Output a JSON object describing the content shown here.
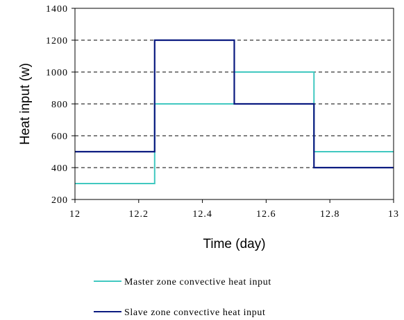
{
  "chart_data": {
    "type": "line",
    "xlabel": "Time (day)",
    "ylabel": "Heat input (w)",
    "xlim": [
      12,
      13
    ],
    "ylim": [
      200,
      1400
    ],
    "x_ticks": [
      {
        "value": 12,
        "label": "12"
      },
      {
        "value": 12.2,
        "label": "12.2"
      },
      {
        "value": 12.4,
        "label": "12.4"
      },
      {
        "value": 12.6,
        "label": "12.6"
      },
      {
        "value": 12.8,
        "label": "12.8"
      },
      {
        "value": 13,
        "label": "13"
      }
    ],
    "y_ticks": [
      {
        "value": 200,
        "label": "200"
      },
      {
        "value": 400,
        "label": "400"
      },
      {
        "value": 600,
        "label": "600"
      },
      {
        "value": 800,
        "label": "800"
      },
      {
        "value": 1000,
        "label": "1000"
      },
      {
        "value": 1200,
        "label": "1200"
      },
      {
        "value": 1400,
        "label": "1400"
      }
    ],
    "grid": "horizontal dashed",
    "legend_position": "bottom",
    "series": [
      {
        "name": "Master zone convective heat input",
        "color": "#40c8c0",
        "x": [
          12,
          12.25,
          12.25,
          12.5,
          12.5,
          12.75,
          12.75,
          13
        ],
        "y": [
          300,
          300,
          800,
          800,
          1000,
          1000,
          500,
          500
        ]
      },
      {
        "name": "Slave zone convective heat input",
        "color": "#0a1a80",
        "x": [
          12,
          12.25,
          12.25,
          12.5,
          12.5,
          12.75,
          12.75,
          13
        ],
        "y": [
          500,
          500,
          1200,
          1200,
          800,
          800,
          400,
          400
        ]
      }
    ]
  }
}
